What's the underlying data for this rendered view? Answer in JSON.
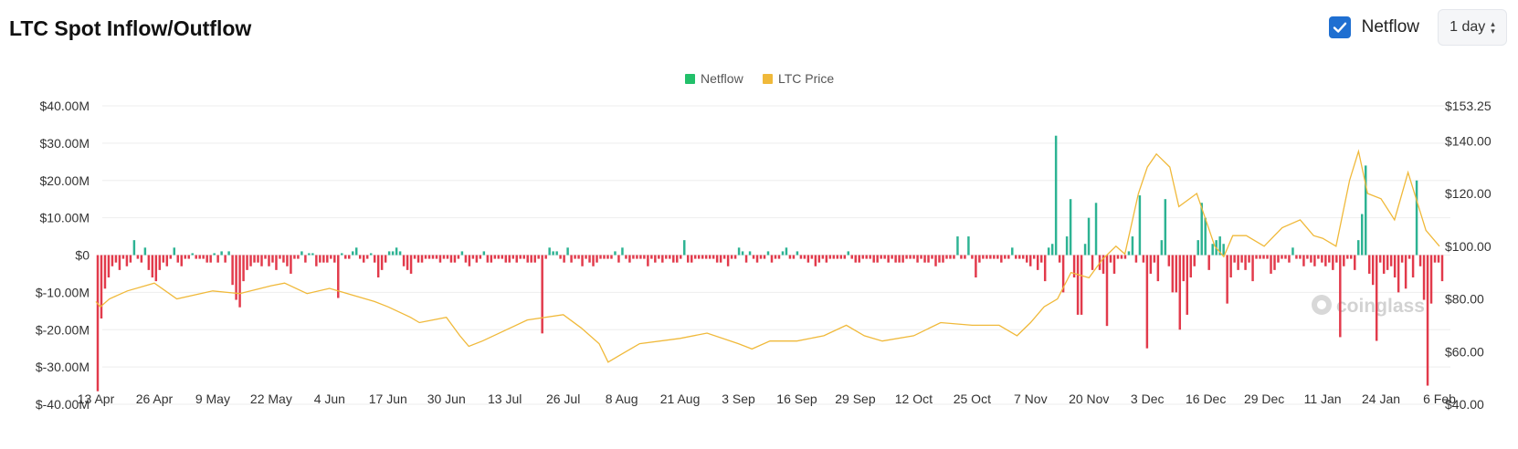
{
  "header": {
    "title": "LTC Spot Inflow/Outflow",
    "netflow_toggle": {
      "label": "Netflow",
      "checked": true,
      "icon": "check-icon"
    },
    "period": {
      "value": "1 day",
      "icon": "updown-chevron-icon"
    }
  },
  "watermark": "coinglass",
  "colors": {
    "inflow": "#2db393",
    "outflow": "#e23a4b",
    "price": "#f0b93a",
    "legend_netflow": "#22c06a",
    "checkbox": "#1f6fd1"
  },
  "chart_data": {
    "type": "bar",
    "title": "LTC Spot Inflow/Outflow",
    "legend": [
      {
        "name": "Netflow",
        "marker": "square"
      },
      {
        "name": "LTC Price",
        "marker": "square"
      }
    ],
    "legend_position": "top-center",
    "y_left": {
      "ticks": [
        "$40.00M",
        "$30.00M",
        "$20.00M",
        "$10.00M",
        "$0",
        "$-10.00M",
        "$-20.00M",
        "$-30.00M",
        "$-40.00M"
      ],
      "range": [
        -40,
        40
      ],
      "unit": "M USD"
    },
    "y_right": {
      "ticks": [
        "$153.25",
        "$140.00",
        "$120.00",
        "$100.00",
        "$80.00",
        "$60.00",
        "$40.00"
      ],
      "range": [
        40,
        153.25
      ]
    },
    "x": {
      "start": "2024-04-13",
      "end": "2025-02-06",
      "ticks": [
        "13 Apr",
        "26 Apr",
        "9 May",
        "22 May",
        "4 Jun",
        "17 Jun",
        "30 Jun",
        "13 Jul",
        "26 Jul",
        "8 Aug",
        "21 Aug",
        "3 Sep",
        "16 Sep",
        "29 Sep",
        "12 Oct",
        "25 Oct",
        "7 Nov",
        "20 Nov",
        "3 Dec",
        "16 Dec",
        "29 Dec",
        "11 Jan",
        "24 Jan",
        "6 Feb"
      ]
    },
    "grid": true,
    "series": [
      {
        "name": "Netflow",
        "type": "bar",
        "values": [
          -36.5,
          -17,
          -9,
          -6,
          -3,
          -2,
          -4,
          -1,
          -3,
          -2,
          4,
          -1,
          -2,
          2,
          -4,
          -6,
          -7,
          -4,
          -2,
          -3,
          -1,
          2,
          -2,
          -3,
          -1,
          -1,
          0.5,
          -1,
          -1,
          -1,
          -2,
          -2,
          0.5,
          -2,
          1,
          -2,
          1,
          -8,
          -12,
          -14,
          -7,
          -4,
          -3,
          -2,
          -2,
          -3,
          -1,
          -3,
          -2,
          -4,
          -1,
          -2,
          -3,
          -5,
          -1,
          -1,
          1,
          -2,
          0.5,
          0.5,
          -3,
          -2,
          -2,
          -2,
          -1,
          -2,
          -11.5,
          0.5,
          -1,
          -1,
          1,
          2,
          -1,
          -2,
          -1,
          0.5,
          -2,
          -6,
          -4,
          -2,
          1,
          1,
          2,
          1,
          -3,
          -4,
          -5,
          -1,
          -2,
          -2,
          -1,
          -1,
          -1,
          -1,
          -2,
          -1,
          -1,
          -2,
          -2,
          -1,
          1,
          -2,
          -3,
          -1,
          -2,
          -1,
          1,
          -2,
          -2,
          -1,
          -1,
          -1,
          -2,
          -2,
          -1,
          -2,
          -1,
          -1,
          -2,
          -2,
          -2,
          -1,
          -21,
          -1,
          2,
          1,
          1,
          -1,
          -2,
          2,
          -2,
          -1,
          -1,
          -3,
          -1,
          -2,
          -3,
          -2,
          -1,
          -1,
          -1,
          -1,
          1,
          -2,
          2,
          -1,
          -2,
          -1,
          -1,
          -1,
          -1,
          -3,
          -1,
          -2,
          -1,
          -2,
          -1,
          -1,
          -2,
          -2,
          -1,
          4,
          -2,
          -2,
          -1,
          -1,
          -1,
          -1,
          -1,
          -1,
          -2,
          -2,
          -1,
          -3,
          -1,
          -1,
          2,
          1,
          -2,
          1,
          -1,
          -2,
          -1,
          -1,
          1,
          -2,
          -1,
          -1,
          1,
          2,
          -1,
          -1,
          1,
          -1,
          -1,
          -2,
          -1,
          -3,
          -2,
          -1,
          -2,
          -1,
          -1,
          -1,
          -1,
          -1,
          1,
          -1,
          -2,
          -2,
          -1,
          -1,
          -1,
          -2,
          -2,
          -1,
          -1,
          -2,
          -1,
          -2,
          -2,
          -2,
          -1,
          -1,
          -1,
          -2,
          -1,
          -2,
          -2,
          -1,
          -3,
          -2,
          -2,
          -1,
          -1,
          -1,
          5,
          -1,
          -1,
          5,
          -1,
          -6,
          -2,
          -1,
          -1,
          -1,
          -1,
          -1,
          -2,
          -1,
          -1,
          2,
          -1,
          -1,
          -1,
          -2,
          -3,
          -1,
          -4,
          -2,
          -7,
          2,
          3,
          32,
          -2,
          -10,
          5,
          15,
          -6,
          -16,
          -16,
          3,
          10,
          -4,
          14,
          -4,
          -5,
          -19,
          -2,
          -5,
          -1,
          -1,
          -1,
          1,
          5,
          -2,
          16,
          -2,
          -25,
          -5,
          -2,
          -7,
          4,
          15,
          -3,
          -10,
          -10,
          -20,
          -7,
          -16,
          -6,
          -3,
          4,
          14,
          10,
          -4,
          3,
          4,
          5,
          3,
          -13,
          -6,
          -2,
          -4,
          -2,
          -4,
          -2,
          -7,
          -1,
          -1,
          -1,
          -1,
          -5,
          -4,
          -2,
          -1,
          -1,
          -2,
          2,
          -1,
          -1,
          -3,
          -1,
          -2,
          -3,
          -1,
          -2,
          -3,
          -2,
          -4,
          -2,
          -22,
          -3,
          -1,
          -1,
          -4,
          4,
          11,
          24,
          -5,
          -8,
          -23,
          -2,
          -5,
          -4,
          -3,
          -6,
          -10,
          -2,
          -9,
          -1,
          -6,
          20,
          -3,
          -12,
          -35,
          -13,
          -2,
          -2,
          -7
        ]
      },
      {
        "name": "LTC Price",
        "type": "line",
        "axis": "right",
        "keypoints": [
          [
            "2024-04-13",
            79
          ],
          [
            "2024-04-14",
            77
          ],
          [
            "2024-04-16",
            80
          ],
          [
            "2024-04-20",
            83
          ],
          [
            "2024-04-26",
            86
          ],
          [
            "2024-05-01",
            80
          ],
          [
            "2024-05-09",
            83
          ],
          [
            "2024-05-15",
            82
          ],
          [
            "2024-05-22",
            85
          ],
          [
            "2024-05-25",
            86
          ],
          [
            "2024-05-30",
            82
          ],
          [
            "2024-06-04",
            84
          ],
          [
            "2024-06-10",
            81
          ],
          [
            "2024-06-14",
            79
          ],
          [
            "2024-06-17",
            77
          ],
          [
            "2024-06-22",
            73
          ],
          [
            "2024-06-24",
            71
          ],
          [
            "2024-06-30",
            73
          ],
          [
            "2024-07-03",
            66
          ],
          [
            "2024-07-05",
            62
          ],
          [
            "2024-07-08",
            64
          ],
          [
            "2024-07-13",
            68
          ],
          [
            "2024-07-18",
            72
          ],
          [
            "2024-07-26",
            74
          ],
          [
            "2024-07-30",
            69
          ],
          [
            "2024-08-03",
            63
          ],
          [
            "2024-08-05",
            56
          ],
          [
            "2024-08-08",
            59
          ],
          [
            "2024-08-12",
            63
          ],
          [
            "2024-08-21",
            65
          ],
          [
            "2024-08-27",
            67
          ],
          [
            "2024-09-03",
            63
          ],
          [
            "2024-09-06",
            61
          ],
          [
            "2024-09-10",
            64
          ],
          [
            "2024-09-16",
            64
          ],
          [
            "2024-09-22",
            66
          ],
          [
            "2024-09-27",
            70
          ],
          [
            "2024-10-01",
            66
          ],
          [
            "2024-10-05",
            64
          ],
          [
            "2024-10-12",
            66
          ],
          [
            "2024-10-18",
            71
          ],
          [
            "2024-10-25",
            70
          ],
          [
            "2024-10-31",
            70
          ],
          [
            "2024-11-04",
            66
          ],
          [
            "2024-11-07",
            71
          ],
          [
            "2024-11-10",
            77
          ],
          [
            "2024-11-13",
            80
          ],
          [
            "2024-11-16",
            90
          ],
          [
            "2024-11-20",
            88
          ],
          [
            "2024-11-23",
            95
          ],
          [
            "2024-11-26",
            100
          ],
          [
            "2024-11-28",
            97
          ],
          [
            "2024-12-01",
            120
          ],
          [
            "2024-12-03",
            130
          ],
          [
            "2024-12-05",
            135
          ],
          [
            "2024-12-08",
            130
          ],
          [
            "2024-12-10",
            115
          ],
          [
            "2024-12-14",
            120
          ],
          [
            "2024-12-16",
            110
          ],
          [
            "2024-12-18",
            100
          ],
          [
            "2024-12-20",
            96
          ],
          [
            "2024-12-22",
            104
          ],
          [
            "2024-12-25",
            104
          ],
          [
            "2024-12-29",
            100
          ],
          [
            "2025-01-02",
            107
          ],
          [
            "2025-01-06",
            110
          ],
          [
            "2025-01-09",
            104
          ],
          [
            "2025-01-11",
            103
          ],
          [
            "2025-01-14",
            100
          ],
          [
            "2025-01-17",
            125
          ],
          [
            "2025-01-19",
            136
          ],
          [
            "2025-01-21",
            120
          ],
          [
            "2025-01-24",
            118
          ],
          [
            "2025-01-27",
            110
          ],
          [
            "2025-01-30",
            128
          ],
          [
            "2025-02-03",
            106
          ],
          [
            "2025-02-06",
            100
          ]
        ]
      }
    ]
  }
}
